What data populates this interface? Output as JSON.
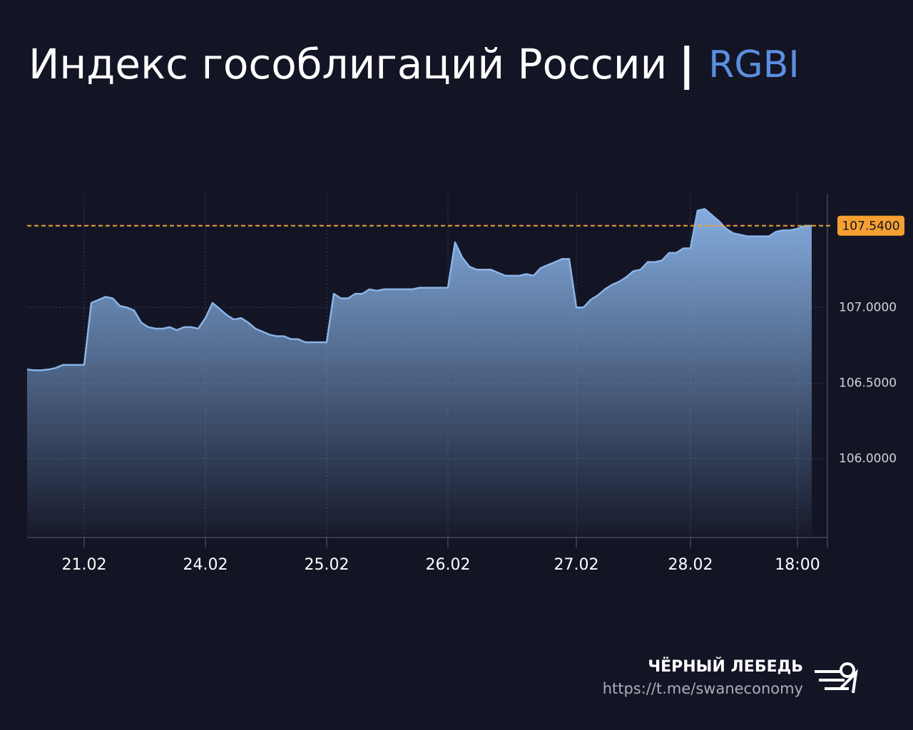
{
  "chart_data": {
    "type": "area",
    "title": "Индекс гособлигаций России",
    "title_tag": "RGBI",
    "brand": "ЧЁРНЫЙ ЛЕБЕДЬ",
    "link": "https://t.me/swaneconomy",
    "color": "#8ab4e8",
    "categories": [
      null,
      null,
      null,
      null,
      null,
      null,
      null,
      null,
      "21.02",
      null,
      null,
      null,
      null,
      null,
      null,
      null,
      null,
      null,
      null,
      null,
      null,
      null,
      null,
      null,
      null,
      "24.02",
      null,
      null,
      null,
      null,
      null,
      null,
      null,
      null,
      null,
      null,
      null,
      null,
      null,
      null,
      null,
      null,
      "25.02",
      null,
      null,
      null,
      null,
      null,
      null,
      null,
      null,
      null,
      null,
      null,
      null,
      null,
      null,
      null,
      null,
      "26.02",
      null,
      null,
      null,
      null,
      null,
      null,
      null,
      null,
      null,
      null,
      null,
      null,
      null,
      null,
      null,
      null,
      null,
      "27.02",
      null,
      null,
      null,
      null,
      null,
      null,
      null,
      null,
      null,
      null,
      null,
      null,
      null,
      null,
      null,
      "28.02",
      null,
      null,
      null,
      null,
      null,
      null,
      null,
      null,
      null,
      null,
      null,
      null,
      null,
      null,
      "18:00",
      null,
      null
    ],
    "values": [
      106.59,
      106.585,
      106.585,
      106.59,
      106.6,
      106.62,
      106.62,
      106.62,
      106.62,
      107.03,
      107.05,
      107.07,
      107.06,
      107.01,
      107.0,
      106.98,
      106.9,
      106.87,
      106.86,
      106.86,
      106.87,
      106.85,
      106.87,
      106.87,
      106.86,
      106.93,
      107.03,
      106.99,
      106.95,
      106.92,
      106.93,
      106.9,
      106.86,
      106.84,
      106.82,
      106.81,
      106.81,
      106.79,
      106.79,
      106.77,
      106.77,
      106.77,
      106.77,
      107.09,
      107.06,
      107.06,
      107.09,
      107.09,
      107.12,
      107.11,
      107.12,
      107.12,
      107.12,
      107.12,
      107.12,
      107.13,
      107.13,
      107.13,
      107.13,
      107.13,
      107.43,
      107.33,
      107.27,
      107.25,
      107.25,
      107.25,
      107.23,
      107.21,
      107.21,
      107.21,
      107.22,
      107.21,
      107.26,
      107.28,
      107.3,
      107.32,
      107.32,
      107.0,
      107.0,
      107.05,
      107.08,
      107.12,
      107.15,
      107.17,
      107.2,
      107.24,
      107.25,
      107.3,
      107.3,
      107.31,
      107.36,
      107.36,
      107.39,
      107.39,
      107.64,
      107.65,
      107.61,
      107.57,
      107.52,
      107.49,
      107.48,
      107.47,
      107.47,
      107.47,
      107.47,
      107.5,
      107.51,
      107.51,
      107.52,
      107.54,
      107.54
    ],
    "ylim": [
      105.48,
      107.75
    ],
    "yticks": [
      {
        "value": 106,
        "label": "106.0000"
      },
      {
        "value": 106.5,
        "label": "106.5000"
      },
      {
        "value": 107,
        "label": "107.0000"
      }
    ],
    "grid": true,
    "reference_line": {
      "value": 107.54,
      "label": "107.5400",
      "color": "#f5a031"
    }
  }
}
